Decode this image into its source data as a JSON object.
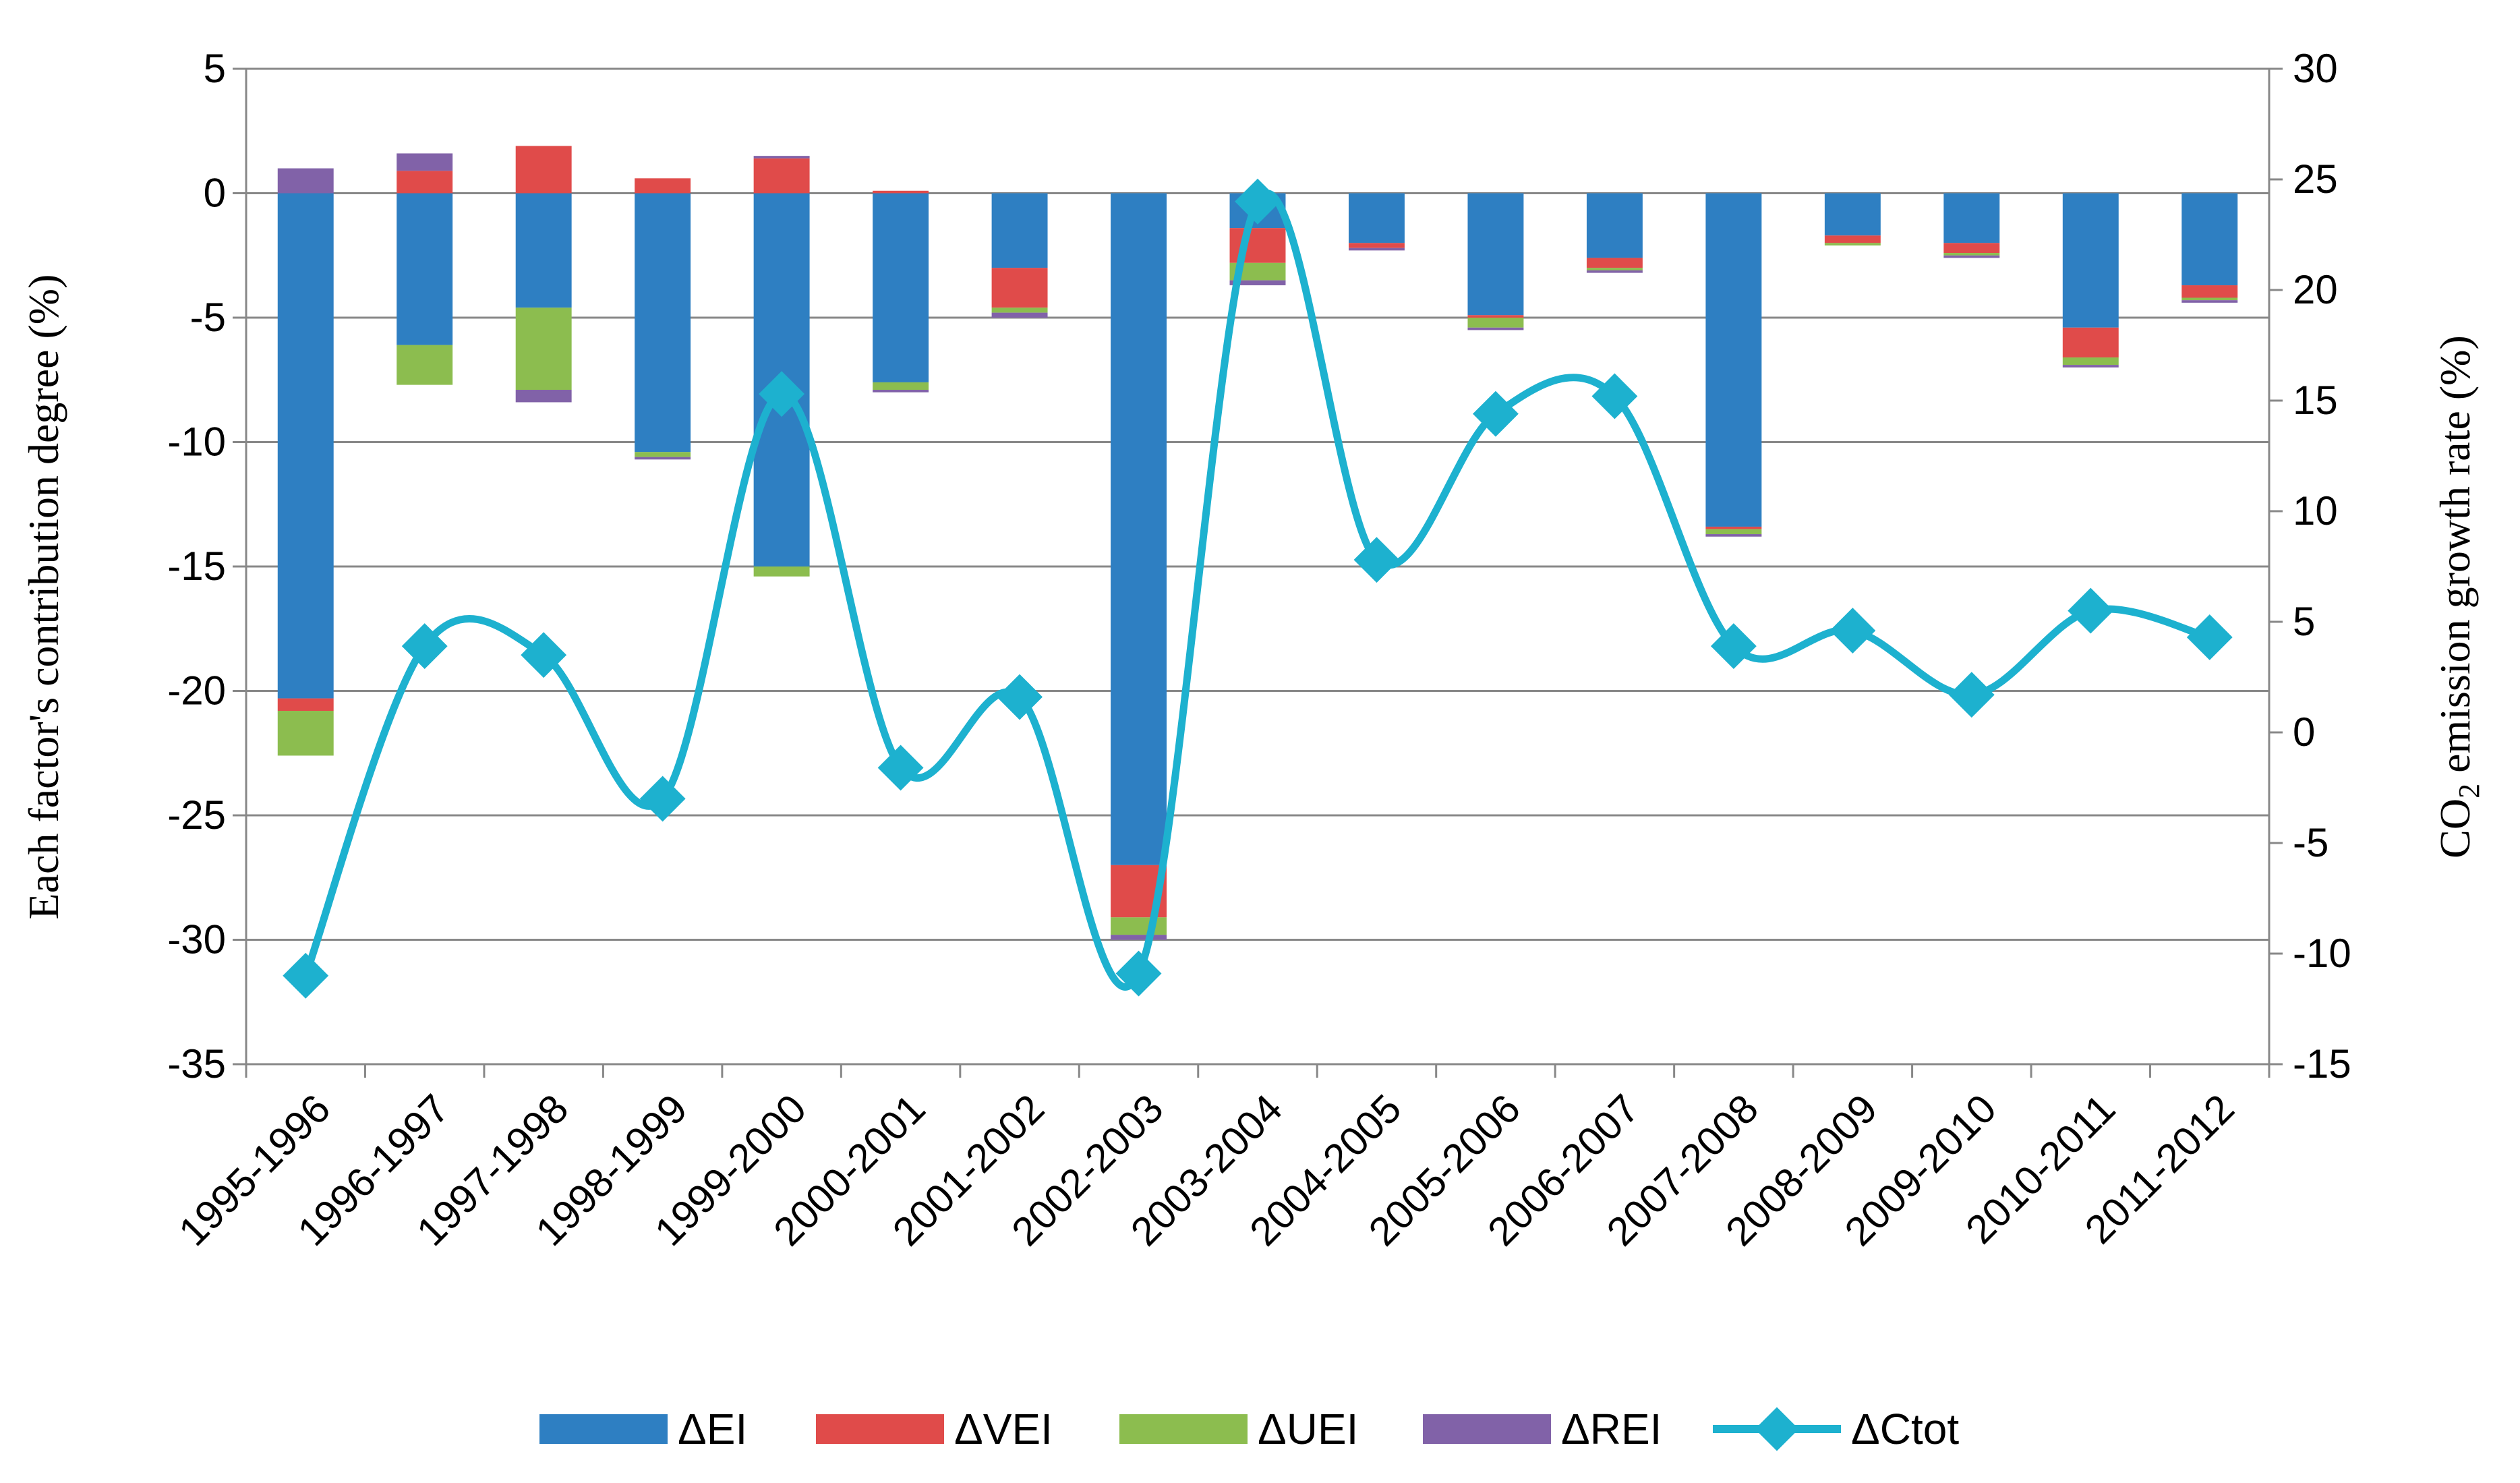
{
  "chart_data": {
    "type": "bar",
    "stacked": true,
    "title": "",
    "categories": [
      "1995-1996",
      "1996-1997",
      "1997-1998",
      "1998-1999",
      "1999-2000",
      "2000-2001",
      "2001-2002",
      "2002-2003",
      "2003-2004",
      "2004-2005",
      "2005-2006",
      "2006-2007",
      "2007-2008",
      "2008-2009",
      "2009-2010",
      "2010-2011",
      "2011-2012"
    ],
    "ylabel": "Each factor's contribution degree (%)",
    "y2label_main": "CO",
    "y2label_sub": "2",
    "y2label_rest": " emission growth rate (%)",
    "ylim": [
      -35,
      5
    ],
    "y2lim": [
      -15,
      30
    ],
    "yticks": [
      "5",
      "0",
      "-5",
      "-10",
      "-15",
      "-20",
      "-25",
      "-30",
      "-35"
    ],
    "y2ticks": [
      "30",
      "25",
      "20",
      "15",
      "10",
      "5",
      "0",
      "-5",
      "-10",
      "-15"
    ],
    "grid": true,
    "legend_position": "bottom",
    "series": [
      {
        "name": "ΔEI",
        "color": "#2e7fc2",
        "axis": "left",
        "values": [
          -20.3,
          -6.1,
          -4.6,
          -10.4,
          -15.0,
          -7.6,
          -3.0,
          -27.0,
          -1.4,
          -2.0,
          -4.9,
          -2.6,
          -13.4,
          -1.7,
          -2.0,
          -5.4,
          -3.7
        ]
      },
      {
        "name": "ΔVEI",
        "color": "#e04b4a",
        "axis": "left",
        "values": [
          -0.5,
          0.9,
          1.9,
          0.6,
          1.4,
          0.1,
          -1.6,
          -2.1,
          -1.4,
          -0.2,
          -0.1,
          -0.4,
          -0.1,
          -0.3,
          -0.4,
          -1.2,
          -0.5
        ]
      },
      {
        "name": "ΔUEI",
        "color": "#8cbd4f",
        "axis": "left",
        "values": [
          -1.8,
          -1.6,
          -3.3,
          -0.2,
          -0.4,
          -0.3,
          -0.2,
          -0.7,
          -0.7,
          0.0,
          -0.4,
          -0.1,
          -0.2,
          -0.1,
          -0.1,
          -0.3,
          -0.1
        ]
      },
      {
        "name": "ΔREI",
        "color": "#8162a8",
        "axis": "left",
        "values": [
          1.0,
          0.7,
          -0.5,
          -0.1,
          0.1,
          -0.1,
          -0.2,
          -0.2,
          -0.2,
          -0.1,
          -0.1,
          -0.1,
          -0.1,
          0.0,
          -0.1,
          -0.1,
          -0.1
        ]
      },
      {
        "name": "ΔCtot",
        "type": "line",
        "color": "#1db1cf",
        "axis": "right",
        "values": [
          -11.0,
          3.9,
          3.5,
          -3.0,
          15.3,
          -1.6,
          1.6,
          -10.9,
          24.0,
          7.8,
          14.4,
          15.2,
          3.9,
          4.6,
          1.7,
          5.5,
          4.3
        ]
      }
    ]
  }
}
